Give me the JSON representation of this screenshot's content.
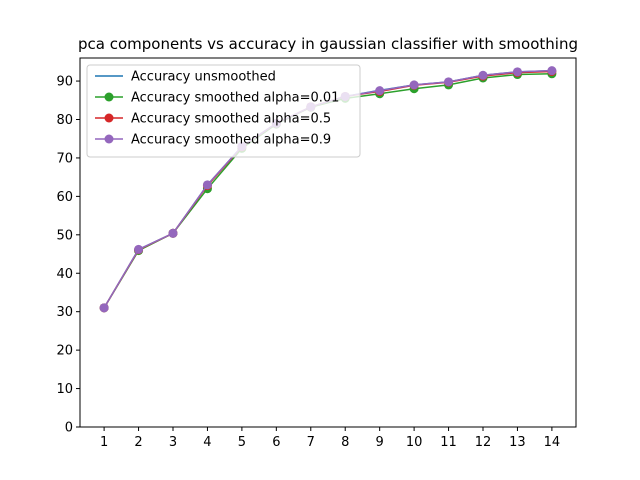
{
  "chart_data": {
    "type": "line",
    "title": "pca components vs accuracy in gaussian classifier with smoothing",
    "xlabel": "",
    "ylabel": "",
    "x": [
      1,
      2,
      3,
      4,
      5,
      6,
      7,
      8,
      9,
      10,
      11,
      12,
      13,
      14
    ],
    "xlim": [
      0.3,
      14.7
    ],
    "ylim": [
      0,
      96
    ],
    "yticks": [
      0,
      10,
      20,
      30,
      40,
      50,
      60,
      70,
      80,
      90
    ],
    "grid": false,
    "legend_position": "upper-left",
    "series": [
      {
        "name": "Accuracy unsmoothed",
        "color": "#1f77b4",
        "marker": "none",
        "values": [
          31.0,
          46.2,
          50.4,
          63.0,
          73.0,
          79.0,
          83.2,
          86.0,
          87.6,
          89.0,
          89.8,
          91.5,
          92.4,
          92.7
        ]
      },
      {
        "name": "Accuracy smoothed alpha=0.01",
        "color": "#2ca02c",
        "marker": "circle",
        "values": [
          31.0,
          45.9,
          50.4,
          62.0,
          72.5,
          78.8,
          83.2,
          85.5,
          86.7,
          88.0,
          89.0,
          90.8,
          91.7,
          91.9
        ]
      },
      {
        "name": "Accuracy smoothed alpha=0.5",
        "color": "#d62728",
        "marker": "circle",
        "values": [
          31.0,
          46.1,
          50.4,
          62.8,
          72.9,
          79.0,
          83.3,
          86.0,
          87.3,
          88.9,
          89.7,
          91.3,
          92.2,
          92.5
        ]
      },
      {
        "name": "Accuracy smoothed alpha=0.9",
        "color": "#9467bd",
        "marker": "circle",
        "values": [
          31.0,
          46.2,
          50.4,
          63.0,
          73.0,
          79.0,
          83.3,
          86.0,
          87.5,
          89.0,
          89.8,
          91.5,
          92.4,
          92.7
        ]
      }
    ]
  }
}
